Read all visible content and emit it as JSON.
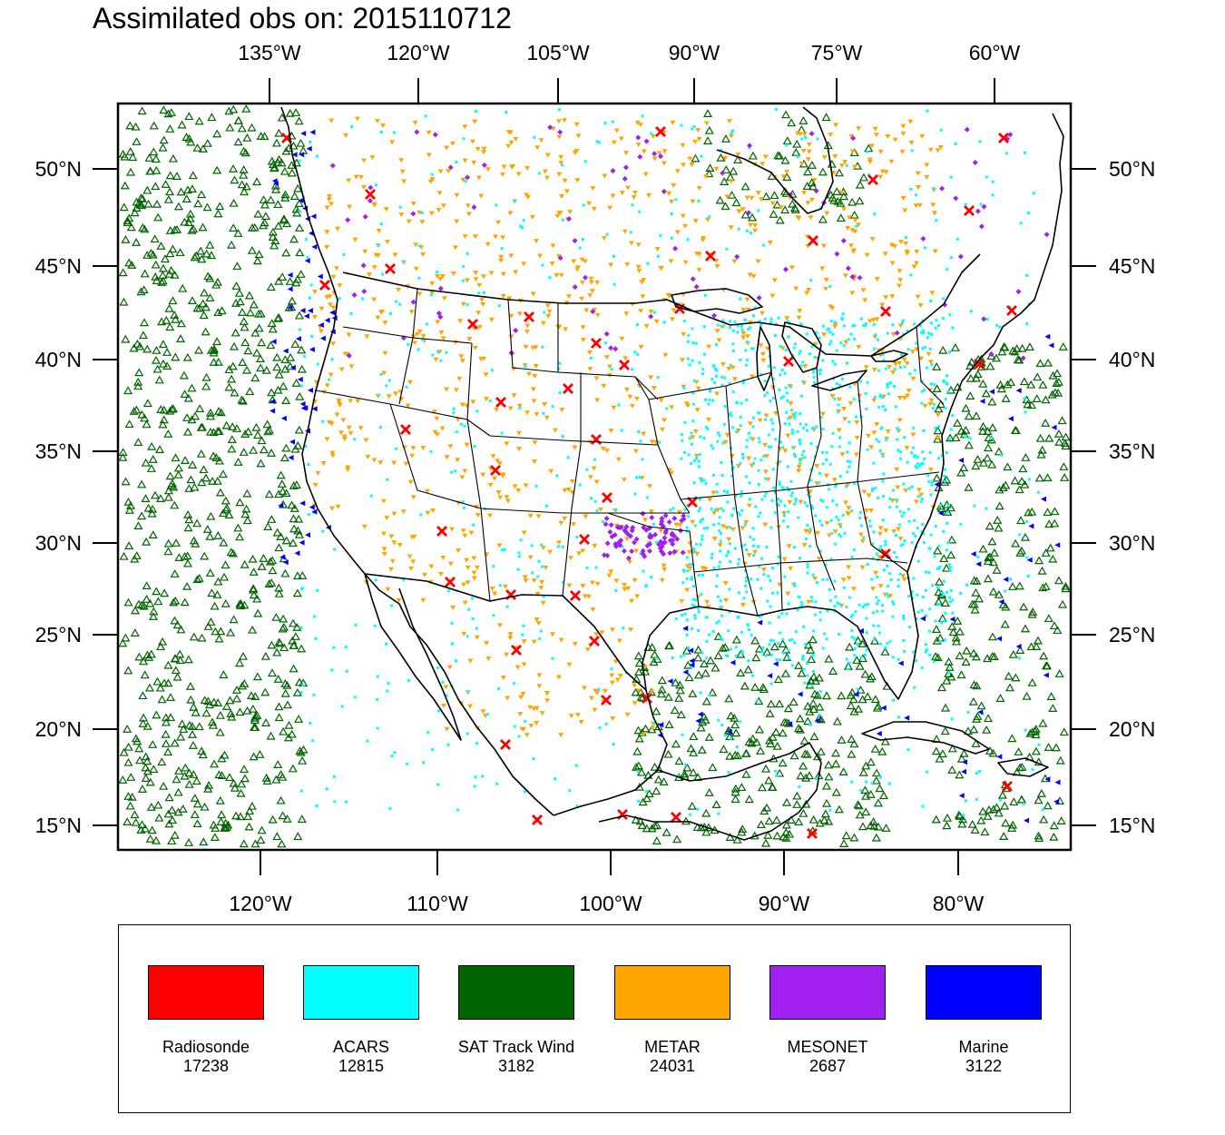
{
  "title": "Assimilated obs on: 2015110712",
  "top_lon_labels": [
    "135°W",
    "120°W",
    "105°W",
    "90°W",
    "75°W",
    "60°W"
  ],
  "bottom_lon_labels": [
    "120°W",
    "110°W",
    "100°W",
    "90°W",
    "80°W"
  ],
  "lat_labels": [
    "50°N",
    "45°N",
    "40°N",
    "35°N",
    "30°N",
    "25°N",
    "20°N",
    "15°N"
  ],
  "legend": [
    {
      "label": "Radiosonde",
      "count": "17238",
      "color": "#ff0000",
      "marker": "x-mark"
    },
    {
      "label": "ACARS",
      "count": "12815",
      "color": "#00ffff",
      "marker": "dot"
    },
    {
      "label": "SAT Track Wind",
      "count": "3182",
      "color": "#006400",
      "marker": "triangle-up"
    },
    {
      "label": "METAR",
      "count": "24031",
      "color": "#ffa500",
      "marker": "triangle-down"
    },
    {
      "label": "MESONET",
      "count": "2687",
      "color": "#a020f0",
      "marker": "diamond"
    },
    {
      "label": "Marine",
      "count": "3122",
      "color": "#0000ff",
      "marker": "triangle-left"
    }
  ],
  "colors": {
    "land_outline": "#000000",
    "background": "#ffffff"
  }
}
